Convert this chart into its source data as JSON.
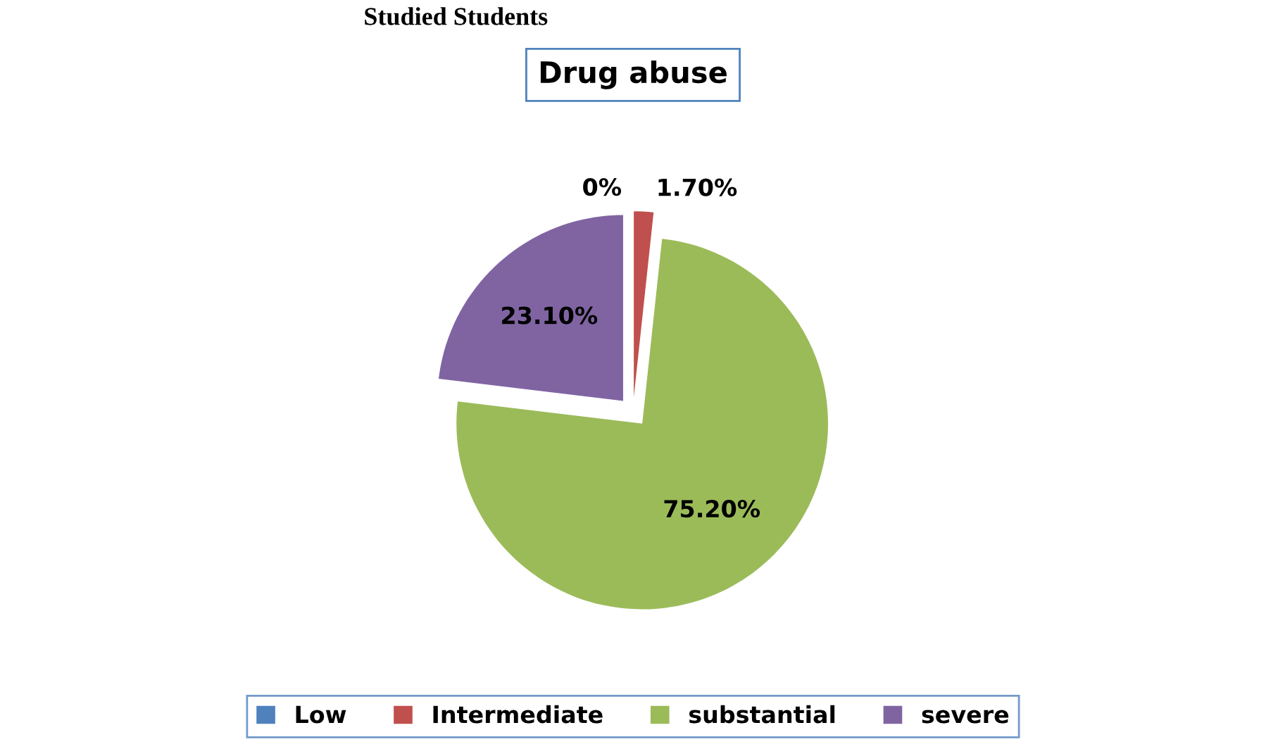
{
  "chart_data": {
    "type": "pie",
    "title": "Drug abuse",
    "annotations": [
      "Studied Students"
    ],
    "categories": [
      "Low",
      "Intermediate",
      "substantial",
      "severe"
    ],
    "values": [
      0,
      1.7,
      75.2,
      23.1
    ],
    "value_labels": [
      "0%",
      "1.70%",
      "75.20%",
      "23.10%"
    ],
    "colors": [
      "#4f81bd",
      "#c0504d",
      "#9bbb59",
      "#8064a2"
    ],
    "legend": "bottom"
  }
}
